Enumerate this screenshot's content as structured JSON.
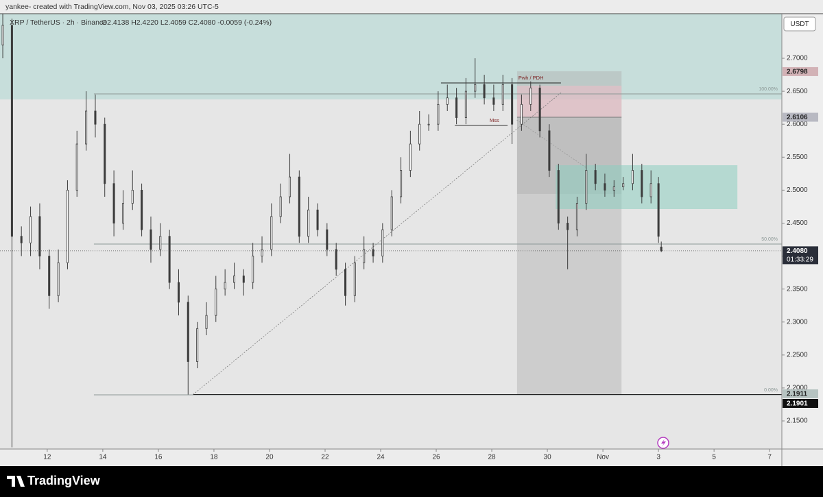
{
  "header": "yankee- created with TradingView.com, Nov 03, 2025 03:26 UTC-5",
  "footer": "TradingView",
  "chart_data": {
    "type": "candlestick",
    "symbol": "XRP / TetherUS · 2h · Binance",
    "ohlc_legend": "O2.4138 H2.4220 L2.4059 C2.4080 -0.0059 (-0.24%)",
    "currency": "USDT",
    "x": [
      10.4,
      10.73,
      11.07,
      11.4,
      11.73,
      12.07,
      12.4,
      12.73,
      13.07,
      13.4,
      13.73,
      14.07,
      14.4,
      14.73,
      15.07,
      15.4,
      15.73,
      16.07,
      16.4,
      16.73,
      17.07,
      17.4,
      17.73,
      18.07,
      18.4,
      18.73,
      19.07,
      19.4,
      19.73,
      20.07,
      20.4,
      20.73,
      21.07,
      21.4,
      21.73,
      22.07,
      22.4,
      22.73,
      23.07,
      23.4,
      23.73,
      24.07,
      24.4,
      24.73,
      25.07,
      25.4,
      25.73,
      26.07,
      26.4,
      26.73,
      27.07,
      27.4,
      27.73,
      28.07,
      28.4,
      28.73,
      29.07,
      29.4,
      29.73,
      30.07,
      30.4,
      30.73,
      31.07,
      31.4,
      31.73,
      32.07,
      32.4,
      32.73,
      33.07,
      33.4,
      33.73,
      34.0,
      34.1
    ],
    "open": [
      2.72,
      2.75,
      2.43,
      2.42,
      2.46,
      2.4,
      2.34,
      2.39,
      2.5,
      2.57,
      2.62,
      2.6,
      2.51,
      2.45,
      2.48,
      2.5,
      2.44,
      2.41,
      2.43,
      2.36,
      2.33,
      2.24,
      2.29,
      2.31,
      2.35,
      2.36,
      2.37,
      2.36,
      2.4,
      2.41,
      2.46,
      2.49,
      2.52,
      2.43,
      2.47,
      2.44,
      2.41,
      2.38,
      2.34,
      2.39,
      2.41,
      2.4,
      2.44,
      2.49,
      2.53,
      2.57,
      2.6,
      2.6,
      2.63,
      2.64,
      2.61,
      2.65,
      2.66,
      2.64,
      2.63,
      2.66,
      2.6,
      2.63,
      2.655,
      2.59,
      2.53,
      2.45,
      2.44,
      2.48,
      2.53,
      2.51,
      2.5,
      2.505,
      2.51,
      2.53,
      2.49,
      2.51,
      2.4138
    ],
    "high": [
      2.78,
      2.76,
      2.445,
      2.475,
      2.48,
      2.41,
      2.41,
      2.515,
      2.59,
      2.65,
      2.645,
      2.61,
      2.53,
      2.5,
      2.53,
      2.51,
      2.46,
      2.45,
      2.44,
      2.38,
      2.34,
      2.3,
      2.33,
      2.37,
      2.38,
      2.39,
      2.38,
      2.42,
      2.43,
      2.48,
      2.51,
      2.555,
      2.53,
      2.49,
      2.48,
      2.45,
      2.42,
      2.39,
      2.4,
      2.43,
      2.42,
      2.45,
      2.5,
      2.55,
      2.59,
      2.62,
      2.615,
      2.65,
      2.66,
      2.655,
      2.67,
      2.7,
      2.675,
      2.66,
      2.675,
      2.67,
      2.645,
      2.665,
      2.66,
      2.6,
      2.54,
      2.46,
      2.49,
      2.555,
      2.54,
      2.525,
      2.515,
      2.52,
      2.555,
      2.54,
      2.53,
      2.52,
      2.422
    ],
    "low": [
      2.7,
      2.11,
      2.4,
      2.4,
      2.38,
      2.32,
      2.33,
      2.38,
      2.49,
      2.56,
      2.58,
      2.49,
      2.43,
      2.44,
      2.47,
      2.43,
      2.39,
      2.4,
      2.35,
      2.31,
      2.19,
      2.23,
      2.28,
      2.3,
      2.34,
      2.35,
      2.34,
      2.35,
      2.39,
      2.4,
      2.45,
      2.48,
      2.42,
      2.42,
      2.43,
      2.4,
      2.37,
      2.325,
      2.33,
      2.38,
      2.39,
      2.39,
      2.43,
      2.48,
      2.52,
      2.56,
      2.59,
      2.59,
      2.62,
      2.6,
      2.6,
      2.64,
      2.63,
      2.62,
      2.62,
      2.57,
      2.59,
      2.62,
      2.58,
      2.52,
      2.44,
      2.38,
      2.43,
      2.47,
      2.5,
      2.49,
      2.49,
      2.5,
      2.5,
      2.48,
      2.48,
      2.42,
      2.4059
    ],
    "close": [
      2.75,
      2.43,
      2.42,
      2.46,
      2.4,
      2.34,
      2.39,
      2.5,
      2.57,
      2.62,
      2.6,
      2.51,
      2.45,
      2.48,
      2.5,
      2.44,
      2.41,
      2.43,
      2.36,
      2.33,
      2.24,
      2.29,
      2.31,
      2.35,
      2.36,
      2.37,
      2.36,
      2.4,
      2.41,
      2.46,
      2.49,
      2.52,
      2.43,
      2.47,
      2.44,
      2.41,
      2.38,
      2.34,
      2.39,
      2.41,
      2.4,
      2.44,
      2.49,
      2.53,
      2.57,
      2.6,
      2.6,
      2.63,
      2.64,
      2.61,
      2.65,
      2.66,
      2.64,
      2.63,
      2.66,
      2.6,
      2.63,
      2.655,
      2.59,
      2.53,
      2.45,
      2.44,
      2.48,
      2.53,
      2.51,
      2.5,
      2.505,
      2.51,
      2.53,
      2.49,
      2.51,
      2.43,
      2.408
    ],
    "up_color": "#f7f7f7",
    "down_color": "#3c3c3c",
    "wick_color": "#3c3c3c",
    "xlim": [
      10.3,
      38.44
    ],
    "xticks": [
      12,
      14,
      16,
      18,
      20,
      22,
      24,
      26,
      28,
      30,
      {
        "value": 32,
        "label": "Nov"
      },
      {
        "value": 34,
        "label": "3"
      },
      {
        "value": 36,
        "label": "5"
      },
      {
        "value": 38,
        "label": "7"
      }
    ],
    "ylim": [
      2.1074,
      2.7676
    ],
    "yticks": [
      {
        "value": 2.15,
        "label": "2.1500"
      },
      {
        "value": 2.2,
        "label": "2.2000"
      },
      {
        "value": 2.25,
        "label": "2.2500"
      },
      {
        "value": 2.3,
        "label": "2.3000"
      },
      {
        "value": 2.35,
        "label": "2.3500"
      },
      {
        "value": 2.4,
        "label": "2.4000"
      },
      {
        "value": 2.45,
        "label": "2.4500"
      },
      {
        "value": 2.5,
        "label": "2.5000"
      },
      {
        "value": 2.55,
        "label": "2.5500"
      },
      {
        "value": 2.6,
        "label": "2.6000"
      },
      {
        "value": 2.65,
        "label": "2.6500"
      },
      {
        "value": 2.7,
        "label": "2.7000"
      }
    ],
    "zones": [
      {
        "x": [
          10.3,
          38.44
        ],
        "y": [
          2.6376,
          2.7676
        ],
        "color": "#c7dedb"
      },
      {
        "x": [
          28.91,
          32.67
        ],
        "y": [
          2.1906,
          2.6803
        ],
        "color": "rgba(175,175,175,0.45)"
      },
      {
        "x": [
          28.91,
          32.67
        ],
        "y": [
          2.6106,
          2.6584
        ],
        "color": "rgba(235,190,198,0.6)"
      },
      {
        "x": [
          28.91,
          32.67
        ],
        "y": [
          2.4942,
          2.6106
        ],
        "color": "rgba(150,150,150,0.25)"
      },
      {
        "x": [
          30.3,
          36.84
        ],
        "y": [
          2.4713,
          2.5378
        ],
        "color": "rgba(140,205,192,0.55)"
      }
    ],
    "levels": [
      {
        "value": 2.646,
        "label": "100.00%",
        "x": [
          13.68,
          38.44
        ],
        "color": "#8c9896"
      },
      {
        "value": 2.4183,
        "label": "50.00%",
        "x": [
          13.68,
          38.44
        ],
        "color": "#8c9896"
      },
      {
        "value": 2.1895,
        "label": "0.00%",
        "x": [
          13.68,
          38.44
        ],
        "color": "#8c9896"
      },
      {
        "value": 2.6626,
        "label": "Pwh / PDH",
        "x": [
          26.17,
          30.49
        ],
        "color": "#222222"
      },
      {
        "value": 2.5981,
        "label": "Mss",
        "x": [
          26.67,
          28.57
        ],
        "color": "#333333"
      },
      {
        "value": 2.6106,
        "x": [
          28.91,
          32.67
        ],
        "color": "#777777"
      },
      {
        "value": 2.1901,
        "x": [
          17.26,
          38.44
        ],
        "color": "#222222"
      }
    ],
    "trendlines": [
      {
        "x": [
          17.25,
          30.5
        ],
        "y": [
          2.19,
          2.648
        ],
        "color": "#7a7a7a"
      },
      {
        "x": [
          28.9,
          31.41
        ],
        "y": [
          2.6064,
          2.5337
        ],
        "color": "#9a9a9a"
      }
    ],
    "price_markers": [
      {
        "value": 2.6798,
        "color": "#d2b2b6",
        "text_color": "#222222"
      },
      {
        "value": 2.6106,
        "color": "#b8b9c2",
        "text_color": "#222222"
      },
      {
        "value": 2.408,
        "label": "2.4080",
        "sublabel": "01:33:29",
        "color": "#2a2e39",
        "text_color": "#ffffff",
        "line": "dotted"
      },
      {
        "value": 2.1911,
        "color": "#b6c3c1",
        "text_color": "#222222"
      },
      {
        "value": 2.1901,
        "color": "#111111",
        "text_color": "#ffffff"
      }
    ]
  }
}
